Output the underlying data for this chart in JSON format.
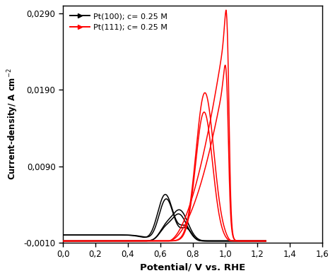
{
  "xlabel": "Potential/ V vs. RHE",
  "ylabel": "Current-density/ A cm⁻²",
  "xlim": [
    0.0,
    1.6
  ],
  "ylim": [
    -0.001,
    0.03
  ],
  "xticks": [
    0.0,
    0.2,
    0.4,
    0.6,
    0.8,
    1.0,
    1.2,
    1.4,
    1.6
  ],
  "yticks": [
    -0.001,
    0.009,
    0.019,
    0.029
  ],
  "ytick_labels": [
    "-0,0010",
    "0,0090",
    "0,0190",
    "0,0290"
  ],
  "xtick_labels": [
    "0,0",
    "0,2",
    "0,4",
    "0,6",
    "0,8",
    "1,0",
    "1,2",
    "1,4",
    "1,6"
  ],
  "legend": [
    {
      "label": "Pt(100); c= 0.25 M",
      "color": "black"
    },
    {
      "label": "Pt(111); c= 0.25 M",
      "color": "red"
    }
  ],
  "background_color": "#ffffff",
  "pt100_color": "black",
  "pt111_color": "red",
  "linewidth": 1.1,
  "base": -0.0008
}
